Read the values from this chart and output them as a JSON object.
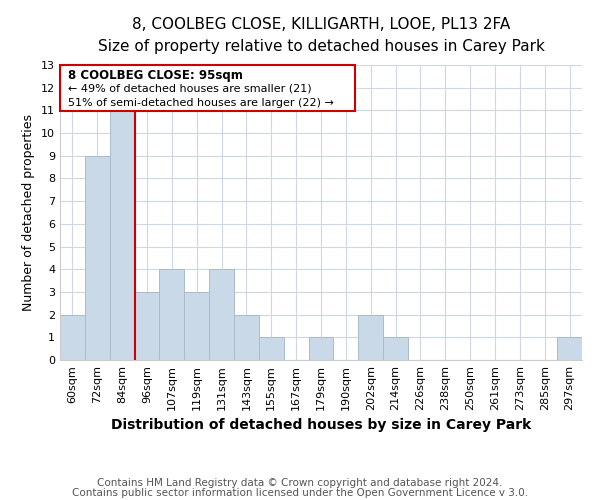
{
  "title": "8, COOLBEG CLOSE, KILLIGARTH, LOOE, PL13 2FA",
  "subtitle": "Size of property relative to detached houses in Carey Park",
  "xlabel": "Distribution of detached houses by size in Carey Park",
  "ylabel": "Number of detached properties",
  "bin_labels": [
    "60sqm",
    "72sqm",
    "84sqm",
    "96sqm",
    "107sqm",
    "119sqm",
    "131sqm",
    "143sqm",
    "155sqm",
    "167sqm",
    "179sqm",
    "190sqm",
    "202sqm",
    "214sqm",
    "226sqm",
    "238sqm",
    "250sqm",
    "261sqm",
    "273sqm",
    "285sqm",
    "297sqm"
  ],
  "bar_heights": [
    2,
    9,
    11,
    3,
    4,
    3,
    4,
    2,
    1,
    0,
    1,
    0,
    2,
    1,
    0,
    0,
    0,
    0,
    0,
    0,
    1
  ],
  "bar_color": "#c9d9e8",
  "bar_edge_color": "#aabccc",
  "ylim": [
    0,
    13
  ],
  "yticks": [
    0,
    1,
    2,
    3,
    4,
    5,
    6,
    7,
    8,
    9,
    10,
    11,
    12,
    13
  ],
  "vline_x_index": 2,
  "vline_color": "#cc0000",
  "annotation_title": "8 COOLBEG CLOSE: 95sqm",
  "annotation_line1": "← 49% of detached houses are smaller (21)",
  "annotation_line2": "51% of semi-detached houses are larger (22) →",
  "annotation_box_color": "#ffffff",
  "annotation_box_edge": "#cc0000",
  "footer1": "Contains HM Land Registry data © Crown copyright and database right 2024.",
  "footer2": "Contains public sector information licensed under the Open Government Licence v 3.0.",
  "background_color": "#ffffff",
  "grid_color": "#cdd8e3",
  "title_fontsize": 11,
  "subtitle_fontsize": 10,
  "xlabel_fontsize": 10,
  "ylabel_fontsize": 9,
  "tick_fontsize": 8,
  "footer_fontsize": 7.5
}
